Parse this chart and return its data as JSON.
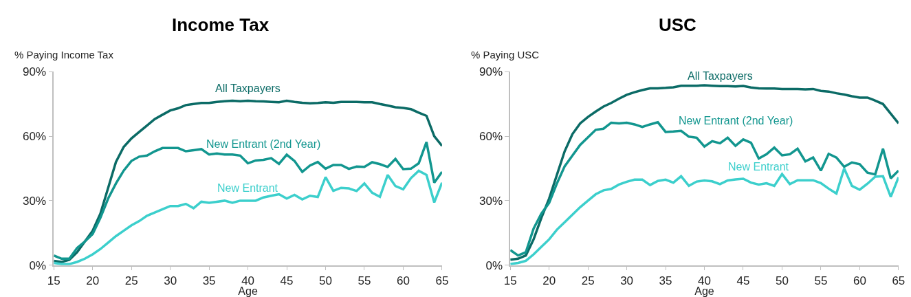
{
  "chart_data": [
    {
      "type": "line",
      "title": "Income Tax",
      "ylabel": "% Paying Income Tax",
      "xlabel": "Age",
      "x": [
        15,
        16,
        17,
        18,
        19,
        20,
        21,
        22,
        23,
        24,
        25,
        26,
        27,
        28,
        29,
        30,
        31,
        32,
        33,
        34,
        35,
        36,
        37,
        38,
        39,
        40,
        41,
        42,
        43,
        44,
        45,
        46,
        47,
        48,
        49,
        50,
        51,
        52,
        53,
        54,
        55,
        56,
        57,
        58,
        59,
        60,
        61,
        62,
        63,
        64,
        65
      ],
      "xlim": [
        15,
        65
      ],
      "xticks": [
        15,
        20,
        25,
        30,
        35,
        40,
        45,
        50,
        55,
        60,
        65
      ],
      "ylim": [
        0,
        90
      ],
      "yticks": [
        {
          "value": 0,
          "label": "0%"
        },
        {
          "value": 30,
          "label": "30%"
        },
        {
          "value": 60,
          "label": "60%"
        },
        {
          "value": 90,
          "label": "90%"
        }
      ],
      "grid": false,
      "legend": false,
      "marker": "none",
      "line_style": "solid",
      "series": [
        {
          "name": "All Taxpayers",
          "color": "#0b6b66",
          "values": [
            2,
            1.5,
            2.5,
            6,
            11,
            16,
            24,
            36,
            48,
            55,
            59,
            62,
            65,
            68,
            70,
            72,
            73,
            74.5,
            75,
            75.5,
            75.5,
            76,
            76.3,
            76.5,
            76.3,
            76.5,
            76.3,
            76.2,
            76,
            75.8,
            76.5,
            76,
            75.6,
            75.3,
            75.5,
            75.8,
            75.6,
            76,
            76,
            76,
            75.8,
            75.8,
            75,
            74.3,
            73.5,
            73.2,
            72.6,
            71,
            69.5,
            60,
            55.5
          ]
        },
        {
          "name": "New Entrant (2nd Year)",
          "color": "#12968f",
          "values": [
            4.5,
            3,
            3,
            8,
            11,
            14.5,
            22,
            31,
            38,
            44,
            48.5,
            50.5,
            51,
            53,
            54.5,
            54.5,
            54.5,
            53,
            53.5,
            54,
            51.5,
            52,
            51.5,
            51.5,
            51,
            47.4,
            48.7,
            49,
            49.8,
            47.1,
            51.4,
            48.5,
            43.4,
            46.4,
            48,
            44.9,
            46.6,
            46.6,
            44.8,
            45.9,
            45.7,
            47.9,
            47,
            45.7,
            49.4,
            44.7,
            44.9,
            47.4,
            57.3,
            38.4,
            43.4
          ]
        },
        {
          "name": "New Entrant",
          "color": "#3ccfcc",
          "values": [
            1,
            0.5,
            0.5,
            1.5,
            3,
            5,
            7.5,
            10.5,
            13.5,
            16,
            18.5,
            20.5,
            23,
            24.5,
            26,
            27.5,
            27.5,
            28.5,
            26.5,
            29.5,
            29,
            29.5,
            30,
            29,
            30,
            30,
            30,
            31.5,
            32.3,
            33,
            31,
            32.7,
            30.6,
            32.3,
            31.7,
            41,
            34.6,
            36,
            35.7,
            34.5,
            38,
            33.7,
            31.8,
            42,
            36.8,
            35.3,
            40.5,
            43.9,
            42,
            29.2,
            38.4
          ]
        }
      ]
    },
    {
      "type": "line",
      "title": "USC",
      "ylabel": "% Paying USC",
      "xlabel": "Age",
      "x": [
        15,
        16,
        17,
        18,
        19,
        20,
        21,
        22,
        23,
        24,
        25,
        26,
        27,
        28,
        29,
        30,
        31,
        32,
        33,
        34,
        35,
        36,
        37,
        38,
        39,
        40,
        41,
        42,
        43,
        44,
        45,
        46,
        47,
        48,
        49,
        50,
        51,
        52,
        53,
        54,
        55,
        56,
        57,
        58,
        59,
        60,
        61,
        62,
        63,
        64,
        65
      ],
      "xlim": [
        15,
        65
      ],
      "xticks": [
        15,
        20,
        25,
        30,
        35,
        40,
        45,
        50,
        55,
        60,
        65
      ],
      "ylim": [
        0,
        90
      ],
      "yticks": [
        {
          "value": 0,
          "label": "0%"
        },
        {
          "value": 30,
          "label": "30%"
        },
        {
          "value": 60,
          "label": "60%"
        },
        {
          "value": 90,
          "label": "90%"
        }
      ],
      "grid": false,
      "legend": false,
      "marker": "none",
      "line_style": "solid",
      "series": [
        {
          "name": "All Taxpayers",
          "color": "#0b6b66",
          "values": [
            2.5,
            3,
            4.5,
            12,
            22,
            31,
            42,
            53,
            61,
            66,
            69,
            71.5,
            73.8,
            75.5,
            77.5,
            79.3,
            80.5,
            81.5,
            82.3,
            82.3,
            82.5,
            82.8,
            83.5,
            83.5,
            83.5,
            83.7,
            83.5,
            83.3,
            83.3,
            83.2,
            83.4,
            82.7,
            82.3,
            82.2,
            82.2,
            82,
            82,
            82,
            81.8,
            82,
            81.1,
            80.8,
            80,
            79.4,
            78.6,
            78,
            78,
            76.6,
            75,
            70.5,
            66
          ]
        },
        {
          "name": "New Entrant (2nd Year)",
          "color": "#12968f",
          "values": [
            7,
            4.5,
            6,
            17,
            24,
            29,
            38,
            46,
            51,
            56,
            59.5,
            63,
            63.5,
            66.3,
            66,
            66.3,
            65.5,
            64.3,
            65.5,
            66.5,
            62,
            62.2,
            62.5,
            59.8,
            59.3,
            55.2,
            57.7,
            56.7,
            59.3,
            55.5,
            58.5,
            57,
            49.6,
            51.6,
            54.7,
            51.1,
            51.6,
            54.2,
            48.3,
            50.1,
            44,
            51.8,
            50.1,
            45.8,
            47.8,
            47,
            43,
            42.2,
            54.2,
            40.4,
            44
          ]
        },
        {
          "name": "New Entrant",
          "color": "#3ccfcc",
          "values": [
            0.5,
            1,
            2,
            5,
            8.5,
            12,
            16.5,
            20,
            23.5,
            27,
            30,
            33,
            34.8,
            35.5,
            37.5,
            38.8,
            39.8,
            39.8,
            37.3,
            39.2,
            39.8,
            38.4,
            41.4,
            36.9,
            38.9,
            39.4,
            39,
            37.7,
            39.4,
            39.9,
            40.2,
            38.4,
            37.5,
            38.1,
            36.9,
            42.4,
            37.7,
            39.5,
            39.5,
            39.5,
            38.2,
            35.6,
            33.3,
            45,
            36.9,
            35.1,
            37.9,
            41.2,
            41.4,
            31.8,
            40.9
          ]
        }
      ]
    }
  ]
}
